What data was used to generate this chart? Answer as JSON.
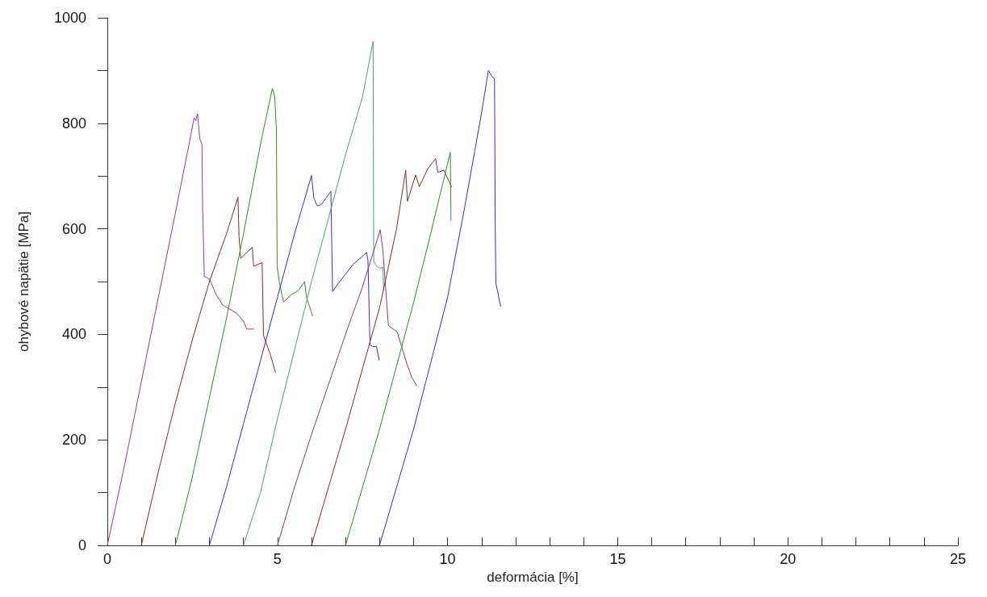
{
  "chart_data": {
    "type": "line",
    "xlabel": "deformácia [%]",
    "ylabel": "ohybové napätie [MPa]",
    "xlim": [
      0,
      25
    ],
    "ylim": [
      0,
      1000
    ],
    "xticks": [
      0,
      {
        "value": 1,
        "label": null
      },
      {
        "value": 2,
        "label": null
      },
      {
        "value": 3,
        "label": null
      },
      {
        "value": 4,
        "label": null
      },
      5,
      {
        "value": 6,
        "label": null
      },
      {
        "value": 7,
        "label": null
      },
      {
        "value": 8,
        "label": null
      },
      {
        "value": 9,
        "label": null
      },
      10,
      {
        "value": 11,
        "label": null
      },
      {
        "value": 12,
        "label": null
      },
      {
        "value": 13,
        "label": null
      },
      {
        "value": 14,
        "label": null
      },
      15,
      {
        "value": 16,
        "label": null
      },
      {
        "value": 17,
        "label": null
      },
      {
        "value": 18,
        "label": null
      },
      {
        "value": 19,
        "label": null
      },
      20,
      {
        "value": 21,
        "label": null
      },
      {
        "value": 22,
        "label": null
      },
      {
        "value": 23,
        "label": null
      },
      {
        "value": 24,
        "label": null
      },
      25
    ],
    "yticks": [
      0,
      {
        "value": 100,
        "label": null
      },
      200,
      {
        "value": 300,
        "label": null
      },
      400,
      {
        "value": 500,
        "label": null
      },
      600,
      {
        "value": 700,
        "label": null
      },
      800,
      {
        "value": 900,
        "label": null
      },
      1000
    ],
    "marker": "none",
    "line_style": "solid",
    "series": [
      {
        "color": "#993a8f",
        "x": [
          0,
          0.5,
          1,
          1.5,
          2,
          2.4,
          2.55,
          2.6,
          2.65,
          2.72,
          2.78,
          2.8,
          2.85,
          3.0,
          3.2,
          3.4,
          3.8,
          4.0,
          4.1,
          4.3
        ],
        "values": [
          0,
          150,
          310,
          470,
          630,
          760,
          810,
          805,
          818,
          770,
          760,
          640,
          510,
          505,
          475,
          455,
          440,
          425,
          410,
          410
        ]
      },
      {
        "color": "#8b2a2a",
        "x": [
          1,
          1.5,
          2,
          2.5,
          3,
          3.5,
          3.84,
          3.87,
          3.92,
          4.26,
          4.3,
          4.55,
          4.59,
          4.8,
          4.94
        ],
        "values": [
          0,
          140,
          270,
          390,
          500,
          590,
          660,
          585,
          544,
          565,
          529,
          536,
          398,
          360,
          328
        ]
      },
      {
        "color": "#2e8b2e",
        "x": [
          2,
          2.5,
          3,
          3.5,
          4,
          4.5,
          4.85,
          4.92,
          4.97,
          4.99,
          5.06,
          5.18,
          5.4,
          5.6,
          5.8,
          5.85,
          6.03
        ],
        "values": [
          0,
          130,
          280,
          430,
          590,
          760,
          866,
          850,
          785,
          530,
          497,
          461,
          475,
          482,
          500,
          471,
          435
        ]
      },
      {
        "color": "#3030d0",
        "x": [
          3,
          3.5,
          4,
          4.5,
          5,
          5.5,
          6.0,
          6.07,
          6.17,
          6.29,
          6.57,
          6.62,
          6.83,
          7.23,
          7.62,
          7.66,
          7.72,
          7.79,
          7.91,
          7.99
        ],
        "values": [
          0,
          110,
          230,
          350,
          470,
          590,
          701,
          658,
          643,
          646,
          671,
          481,
          500,
          533,
          555,
          540,
          380,
          377,
          377,
          351
        ]
      },
      {
        "color": "#4a9a8a",
        "x": [
          4,
          4.5,
          5,
          5.5,
          6,
          6.5,
          7,
          7.5,
          7.81,
          7.83,
          7.9,
          8.0,
          8.1,
          8.12
        ],
        "values": [
          0,
          100,
          240,
          370,
          500,
          620,
          740,
          850,
          955,
          539,
          530,
          525,
          527,
          484
        ]
      },
      {
        "color": "#8a3a6a",
        "x": [
          5,
          5.5,
          6,
          6.5,
          7,
          7.5,
          8.02,
          8.1,
          8.19,
          8.26,
          8.52,
          8.8,
          8.95,
          9.09
        ],
        "values": [
          0,
          110,
          210,
          305,
          400,
          490,
          598,
          559,
          479,
          417,
          404,
          345,
          318,
          303
        ]
      },
      {
        "color": "#8b2a2a",
        "x": [
          6,
          6.5,
          7,
          7.5,
          8,
          8.5,
          8.77,
          8.82,
          9.06,
          9.17,
          9.42,
          9.65,
          9.71,
          9.89,
          10.12
        ],
        "values": [
          0,
          110,
          220,
          335,
          450,
          600,
          711,
          652,
          702,
          680,
          714,
          733,
          707,
          711,
          679
        ]
      },
      {
        "color": "#2e8b2e",
        "x": [
          7,
          7.5,
          8,
          8.5,
          9,
          9.5,
          10.08,
          10.1
        ],
        "values": [
          0,
          110,
          220,
          340,
          460,
          590,
          745,
          616
        ]
      },
      {
        "color": "#3030d0",
        "x": [
          8,
          8.5,
          9,
          9.5,
          10,
          10.5,
          11,
          11.2,
          11.32,
          11.38,
          11.4,
          11.42,
          11.56
        ],
        "values": [
          0,
          110,
          220,
          345,
          470,
          640,
          820,
          900,
          887,
          885,
          607,
          497,
          453
        ]
      }
    ]
  }
}
